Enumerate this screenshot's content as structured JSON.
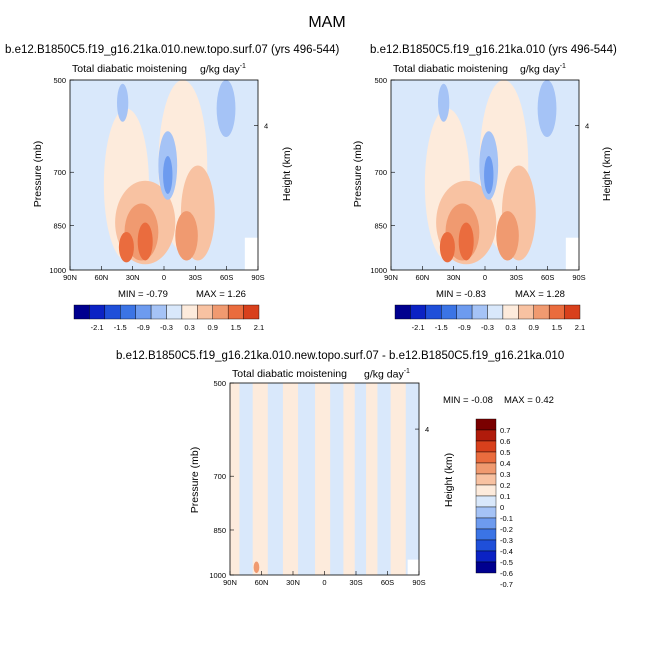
{
  "main_title": "MAM",
  "colors": {
    "scale12": [
      "#00008f",
      "#0b22c4",
      "#1f4fd9",
      "#3b74e5",
      "#6d9bef",
      "#a5c3f6",
      "#d9e8fb",
      "#fdebdc",
      "#f8c2a2",
      "#f09a70",
      "#ea6c3e",
      "#d8401c",
      "#b01b0b",
      "#7a0000"
    ],
    "diff": [
      "#00008f",
      "#0b22c4",
      "#1f4fd9",
      "#3b74e5",
      "#6d9bef",
      "#a5c3f6",
      "#d9e8fb",
      "#fdebdc",
      "#f8c2a2",
      "#f09a70",
      "#ea6c3e",
      "#d8401c",
      "#b01b0b",
      "#7a0000"
    ]
  },
  "chart_data": [
    {
      "type": "heatmap",
      "title": "b.e12.B1850C5.f19_g16.21ka.010.new.topo.surf.07 (yrs 496-544)",
      "subtitle": "Total diabatic moistening",
      "units": "g/kg day",
      "units_exp": "-1",
      "ylabel": "Pressure (mb)",
      "ylabel_right": "Height (km)",
      "xticks": [
        "90N",
        "60N",
        "30N",
        "0",
        "30S",
        "60S",
        "90S"
      ],
      "yticks": [
        "500",
        "700",
        "850",
        "1000"
      ],
      "ytick_values": [
        500,
        700,
        850,
        1000
      ],
      "right_ticks": [
        "4"
      ],
      "xlim": [
        90,
        -90
      ],
      "ylim": [
        1000,
        500
      ],
      "min_label": "MIN =",
      "min": "-0.79",
      "max_label": "MAX =",
      "max": "1.26",
      "levels": [
        "-2.1",
        "-1.5",
        "-0.9",
        "-0.3",
        "0.3",
        "0.9",
        "1.5",
        "2.1"
      ],
      "colorbar_boxes": 12
    },
    {
      "type": "heatmap",
      "title": "b.e12.B1850C5.f19_g16.21ka.010 (yrs 496-544)",
      "subtitle": "Total diabatic moistening",
      "units": "g/kg day",
      "units_exp": "-1",
      "ylabel": "Pressure (mb)",
      "ylabel_right": "Height (km)",
      "xticks": [
        "90N",
        "60N",
        "30N",
        "0",
        "30S",
        "60S",
        "90S"
      ],
      "yticks": [
        "500",
        "700",
        "850",
        "1000"
      ],
      "ytick_values": [
        500,
        700,
        850,
        1000
      ],
      "right_ticks": [
        "4"
      ],
      "xlim": [
        90,
        -90
      ],
      "ylim": [
        1000,
        500
      ],
      "min_label": "MIN =",
      "min": "-0.83",
      "max_label": "MAX =",
      "max": "1.28",
      "levels": [
        "-2.1",
        "-1.5",
        "-0.9",
        "-0.3",
        "0.3",
        "0.9",
        "1.5",
        "2.1"
      ],
      "colorbar_boxes": 12
    },
    {
      "type": "heatmap",
      "title": "b.e12.B1850C5.f19_g16.21ka.010.new.topo.surf.07 - b.e12.B1850C5.f19_g16.21ka.010",
      "subtitle": "Total diabatic moistening",
      "units": "g/kg day",
      "units_exp": "-1",
      "ylabel": "Pressure (mb)",
      "ylabel_right": "Height (km)",
      "xticks": [
        "90N",
        "60N",
        "30N",
        "0",
        "30S",
        "60S",
        "90S"
      ],
      "yticks": [
        "500",
        "700",
        "850",
        "1000"
      ],
      "ytick_values": [
        500,
        700,
        850,
        1000
      ],
      "right_ticks": [
        "4"
      ],
      "xlim": [
        90,
        -90
      ],
      "ylim": [
        1000,
        500
      ],
      "min_label": "MIN =",
      "min": "-0.08",
      "max_label": "MAX =",
      "max": "0.42",
      "levels": [
        "0.7",
        "0.6",
        "0.5",
        "0.4",
        "0.3",
        "0.2",
        "0.1",
        "0",
        "-0.1",
        "-0.2",
        "-0.3",
        "-0.4",
        "-0.5",
        "-0.6",
        "-0.7"
      ],
      "colorbar_boxes": 14
    }
  ]
}
